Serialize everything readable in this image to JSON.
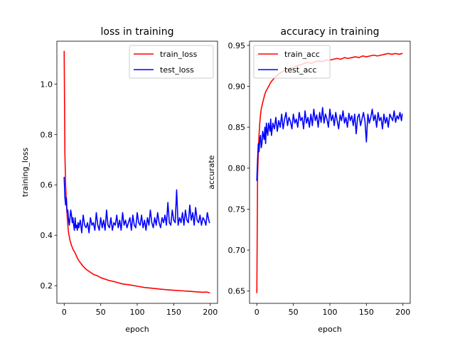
{
  "chart_data": [
    {
      "type": "line",
      "title": "loss in training",
      "xlabel": "epoch",
      "ylabel": "training_loss",
      "xlim": [
        -10,
        210
      ],
      "ylim": [
        0.13,
        1.17
      ],
      "xticks": [
        0,
        50,
        100,
        150,
        200
      ],
      "yticks": [
        0.2,
        0.4,
        0.6,
        0.8,
        1.0
      ],
      "ytick_labels": [
        "0.2",
        "0.4",
        "0.6",
        "0.8",
        "1.0"
      ],
      "legend": "top-right",
      "grid": false,
      "series": [
        {
          "name": "train_loss",
          "color": "#ff0000",
          "x": [
            0,
            1,
            2,
            3,
            4,
            5,
            6,
            8,
            10,
            12,
            15,
            18,
            20,
            25,
            30,
            35,
            40,
            45,
            50,
            60,
            70,
            80,
            90,
            100,
            110,
            120,
            130,
            140,
            150,
            160,
            170,
            180,
            190,
            195,
            199
          ],
          "values": [
            1.13,
            0.72,
            0.6,
            0.53,
            0.48,
            0.44,
            0.41,
            0.38,
            0.36,
            0.345,
            0.33,
            0.31,
            0.3,
            0.28,
            0.265,
            0.255,
            0.245,
            0.24,
            0.232,
            0.222,
            0.215,
            0.207,
            0.203,
            0.198,
            0.193,
            0.19,
            0.187,
            0.184,
            0.182,
            0.18,
            0.178,
            0.176,
            0.174,
            0.175,
            0.172
          ]
        },
        {
          "name": "test_loss",
          "color": "#0000ff",
          "x": [
            0,
            1,
            2,
            3,
            4,
            5,
            6,
            7,
            8,
            9,
            10,
            11,
            12,
            13,
            14,
            15,
            16,
            17,
            18,
            19,
            20,
            22,
            24,
            26,
            28,
            30,
            32,
            34,
            36,
            38,
            40,
            42,
            44,
            46,
            48,
            50,
            52,
            54,
            56,
            58,
            60,
            62,
            64,
            66,
            68,
            70,
            72,
            74,
            76,
            78,
            80,
            82,
            84,
            86,
            88,
            90,
            92,
            94,
            96,
            98,
            100,
            102,
            104,
            106,
            108,
            110,
            112,
            114,
            116,
            118,
            120,
            122,
            124,
            126,
            128,
            130,
            132,
            134,
            136,
            138,
            140,
            142,
            144,
            146,
            148,
            150,
            152,
            154,
            156,
            158,
            160,
            162,
            164,
            166,
            168,
            170,
            172,
            174,
            176,
            178,
            180,
            182,
            184,
            186,
            188,
            190,
            192,
            194,
            196,
            198,
            199
          ],
          "values": [
            0.63,
            0.55,
            0.52,
            0.55,
            0.49,
            0.5,
            0.46,
            0.44,
            0.47,
            0.5,
            0.48,
            0.45,
            0.47,
            0.44,
            0.42,
            0.47,
            0.43,
            0.44,
            0.42,
            0.45,
            0.43,
            0.46,
            0.41,
            0.48,
            0.44,
            0.43,
            0.45,
            0.41,
            0.47,
            0.44,
            0.45,
            0.42,
            0.49,
            0.44,
            0.42,
            0.47,
            0.43,
            0.46,
            0.42,
            0.5,
            0.44,
            0.43,
            0.47,
            0.42,
            0.45,
            0.44,
            0.48,
            0.43,
            0.46,
            0.42,
            0.49,
            0.44,
            0.46,
            0.43,
            0.45,
            0.47,
            0.42,
            0.48,
            0.44,
            0.43,
            0.49,
            0.45,
            0.44,
            0.48,
            0.43,
            0.46,
            0.42,
            0.47,
            0.44,
            0.5,
            0.45,
            0.43,
            0.47,
            0.44,
            0.49,
            0.45,
            0.43,
            0.47,
            0.45,
            0.48,
            0.44,
            0.53,
            0.45,
            0.44,
            0.5,
            0.46,
            0.45,
            0.58,
            0.44,
            0.47,
            0.45,
            0.49,
            0.44,
            0.5,
            0.46,
            0.45,
            0.52,
            0.46,
            0.49,
            0.44,
            0.51,
            0.46,
            0.45,
            0.48,
            0.44,
            0.47,
            0.46,
            0.44,
            0.49,
            0.46,
            0.45
          ]
        }
      ]
    },
    {
      "type": "line",
      "title": "accuracy in training",
      "xlabel": "epoch",
      "ylabel": "accurate",
      "xlim": [
        -10,
        210
      ],
      "ylim": [
        0.635,
        0.955
      ],
      "xticks": [
        0,
        50,
        100,
        150,
        200
      ],
      "yticks": [
        0.65,
        0.7,
        0.75,
        0.8,
        0.85,
        0.9,
        0.95
      ],
      "ytick_labels": [
        "0.65",
        "0.70",
        "0.75",
        "0.80",
        "0.85",
        "0.90",
        "0.95"
      ],
      "legend": "top-left",
      "grid": false,
      "series": [
        {
          "name": "train_acc",
          "color": "#ff0000",
          "x": [
            0,
            1,
            2,
            3,
            4,
            5,
            6,
            8,
            10,
            12,
            15,
            18,
            20,
            25,
            30,
            35,
            40,
            45,
            50,
            55,
            60,
            65,
            70,
            75,
            80,
            85,
            90,
            95,
            100,
            105,
            110,
            115,
            120,
            125,
            130,
            135,
            140,
            145,
            150,
            155,
            160,
            165,
            170,
            175,
            180,
            185,
            190,
            195,
            199
          ],
          "values": [
            0.648,
            0.79,
            0.82,
            0.84,
            0.855,
            0.865,
            0.872,
            0.88,
            0.887,
            0.893,
            0.898,
            0.903,
            0.906,
            0.911,
            0.915,
            0.918,
            0.92,
            0.922,
            0.923,
            0.925,
            0.926,
            0.928,
            0.929,
            0.928,
            0.93,
            0.931,
            0.93,
            0.932,
            0.932,
            0.933,
            0.934,
            0.933,
            0.935,
            0.934,
            0.935,
            0.936,
            0.935,
            0.937,
            0.936,
            0.937,
            0.938,
            0.937,
            0.938,
            0.939,
            0.94,
            0.939,
            0.94,
            0.939,
            0.94
          ]
        },
        {
          "name": "test_acc",
          "color": "#0000ff",
          "x": [
            0,
            1,
            2,
            3,
            4,
            5,
            6,
            7,
            8,
            9,
            10,
            11,
            12,
            13,
            14,
            15,
            16,
            17,
            18,
            19,
            20,
            22,
            24,
            26,
            28,
            30,
            32,
            34,
            36,
            38,
            40,
            42,
            44,
            46,
            48,
            50,
            52,
            54,
            56,
            58,
            60,
            62,
            64,
            66,
            68,
            70,
            72,
            74,
            76,
            78,
            80,
            82,
            84,
            86,
            88,
            90,
            92,
            94,
            96,
            98,
            100,
            102,
            104,
            106,
            108,
            110,
            112,
            114,
            116,
            118,
            120,
            122,
            124,
            126,
            128,
            130,
            132,
            134,
            136,
            138,
            140,
            142,
            144,
            146,
            148,
            150,
            152,
            154,
            156,
            158,
            160,
            162,
            164,
            166,
            168,
            170,
            172,
            174,
            176,
            178,
            180,
            182,
            184,
            186,
            188,
            190,
            192,
            194,
            196,
            198,
            199
          ],
          "values": [
            0.785,
            0.81,
            0.83,
            0.82,
            0.835,
            0.84,
            0.825,
            0.83,
            0.845,
            0.84,
            0.835,
            0.85,
            0.83,
            0.855,
            0.845,
            0.84,
            0.855,
            0.85,
            0.845,
            0.86,
            0.84,
            0.855,
            0.848,
            0.862,
            0.845,
            0.858,
            0.85,
            0.866,
            0.848,
            0.86,
            0.868,
            0.852,
            0.862,
            0.857,
            0.848,
            0.866,
            0.855,
            0.86,
            0.85,
            0.868,
            0.858,
            0.862,
            0.848,
            0.87,
            0.855,
            0.862,
            0.85,
            0.866,
            0.852,
            0.872,
            0.858,
            0.865,
            0.85,
            0.868,
            0.856,
            0.874,
            0.855,
            0.866,
            0.86,
            0.85,
            0.872,
            0.858,
            0.865,
            0.852,
            0.868,
            0.858,
            0.848,
            0.865,
            0.858,
            0.87,
            0.855,
            0.862,
            0.85,
            0.867,
            0.858,
            0.864,
            0.852,
            0.866,
            0.842,
            0.862,
            0.866,
            0.852,
            0.86,
            0.868,
            0.858,
            0.832,
            0.866,
            0.855,
            0.862,
            0.872,
            0.858,
            0.865,
            0.85,
            0.868,
            0.858,
            0.862,
            0.848,
            0.866,
            0.855,
            0.862,
            0.85,
            0.866,
            0.862,
            0.858,
            0.87,
            0.856,
            0.864,
            0.86,
            0.868,
            0.858,
            0.866
          ]
        }
      ]
    }
  ]
}
